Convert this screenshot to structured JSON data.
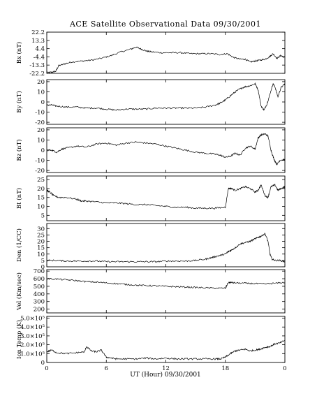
{
  "chart_data": {
    "type": "line",
    "title": "ACE Satellite Observational Data 09/30/2001",
    "xlabel": "UT (Hour) 09/30/2001",
    "xlim": [
      0,
      24
    ],
    "x_ticks": [
      "0",
      "6",
      "12",
      "18",
      "0"
    ],
    "grid": false,
    "panels": [
      {
        "ylabel": "Bx (nT)",
        "ylim": [
          -22.2,
          22.2
        ],
        "yticks": [
          "22.2",
          "13.3",
          "4.4",
          "-4.4",
          "-13.3",
          "-22.2"
        ],
        "series": {
          "x": [
            0,
            0.5,
            0.9,
            1.2,
            1.8,
            2.5,
            3.5,
            4.5,
            5.5,
            6.5,
            7.5,
            8.5,
            9,
            9.5,
            10,
            10.5,
            11.5,
            12.5,
            13.5,
            14.5,
            15.5,
            16.5,
            17.5,
            18.2,
            18.8,
            19.5,
            20,
            20.5,
            21,
            21.5,
            22,
            22.5,
            22.8,
            23.2,
            23.6,
            24
          ],
          "y": [
            -21.5,
            -21,
            -20,
            -14,
            -12,
            -10,
            -9,
            -8,
            -6,
            -3,
            1,
            4,
            6,
            4,
            2,
            1,
            0,
            0,
            0,
            -1,
            -1,
            -1,
            -2,
            -1,
            -5,
            -7,
            -7,
            -10,
            -9,
            -8,
            -7,
            -4,
            -1,
            -6,
            -3,
            -5
          ]
        }
      },
      {
        "ylabel": "By (nT)",
        "ylim": [
          -22,
          22
        ],
        "yticks": [
          "20",
          "10",
          "0",
          "-10",
          "-20"
        ],
        "series": {
          "x": [
            0,
            0.5,
            1,
            2,
            3,
            4,
            5,
            6,
            7,
            8,
            9,
            10,
            11,
            12,
            13,
            14,
            15,
            16,
            17,
            17.5,
            18,
            18.5,
            19,
            19.5,
            20,
            20.5,
            21,
            21.3,
            21.6,
            21.9,
            22.2,
            22.5,
            22.8,
            23,
            23.3,
            23.6,
            24
          ],
          "y": [
            -3,
            -3,
            -4,
            -5,
            -5,
            -6,
            -6,
            -7,
            -8,
            -7,
            -7,
            -7,
            -6,
            -6,
            -6,
            -6,
            -6,
            -5,
            -3,
            -1,
            2,
            6,
            10,
            13,
            15,
            16,
            18,
            12,
            -4,
            -8,
            -2,
            8,
            18,
            15,
            5,
            14,
            18
          ]
        }
      },
      {
        "ylabel": "Bz (nT)",
        "ylim": [
          -22,
          22
        ],
        "yticks": [
          "20",
          "10",
          "0",
          "-10",
          "-20"
        ],
        "series": {
          "x": [
            0,
            0.5,
            1,
            1.5,
            2,
            3,
            4,
            5,
            6,
            7,
            8,
            9,
            10,
            11,
            12,
            13,
            14,
            15,
            16,
            17,
            17.5,
            18,
            18.5,
            19,
            19.5,
            20,
            20.5,
            21,
            21.3,
            21.6,
            22,
            22.3,
            22.6,
            22.9,
            23.2,
            23.5,
            24
          ],
          "y": [
            0,
            0,
            -2,
            1,
            2,
            4,
            3,
            6,
            7,
            5,
            7,
            8,
            7,
            6,
            4,
            2,
            0,
            -2,
            -3,
            -4,
            -5,
            -7,
            -6,
            -3,
            -5,
            2,
            4,
            1,
            12,
            15,
            16,
            14,
            0,
            -9,
            -14,
            -10,
            -9
          ]
        }
      },
      {
        "ylabel": "Bt (nT)",
        "ylim": [
          2,
          27
        ],
        "yticks": [
          "25",
          "20",
          "15",
          "10",
          "5"
        ],
        "series": {
          "x": [
            0,
            0.3,
            0.7,
            1.2,
            2,
            3,
            3.5,
            4,
            5,
            6,
            7,
            8,
            9,
            10,
            11,
            12,
            13,
            14,
            15,
            16,
            17,
            18,
            18.3,
            18.6,
            19,
            19.5,
            20,
            20.5,
            21,
            21.3,
            21.6,
            22,
            22.3,
            22.6,
            23,
            23.3,
            23.6,
            24
          ],
          "y": [
            19,
            18,
            16,
            15,
            15,
            14,
            13,
            13,
            12.5,
            12,
            12,
            11.5,
            11,
            11,
            10.5,
            10,
            9.5,
            9.5,
            9,
            9,
            9,
            9.5,
            20,
            20,
            19,
            20,
            21,
            20,
            18,
            19,
            22,
            16,
            15,
            21,
            22,
            19,
            20,
            21
          ]
        }
      },
      {
        "ylabel": "Den (1/CC)",
        "ylim": [
          0,
          34
        ],
        "yticks": [
          "30",
          "25",
          "20",
          "15",
          "10",
          "5",
          "0"
        ],
        "series": {
          "x": [
            0,
            1,
            2,
            3,
            4,
            5,
            6,
            7,
            8,
            9,
            10,
            11,
            12,
            13,
            14,
            15,
            16,
            16.5,
            17,
            17.5,
            18,
            18.3,
            18.6,
            19,
            19.5,
            20,
            20.5,
            21,
            21.3,
            21.6,
            22,
            22.3,
            22.5,
            22.7,
            23,
            23.5,
            24
          ],
          "y": [
            5,
            5,
            4.5,
            4.5,
            4.5,
            4.5,
            4,
            4,
            4,
            4,
            4,
            4,
            4.5,
            4.5,
            4.5,
            5,
            6,
            7,
            8,
            9,
            10,
            12,
            13,
            15,
            18,
            19,
            20,
            22,
            23,
            24,
            26,
            20,
            10,
            6,
            5,
            5,
            4
          ]
        }
      },
      {
        "ylabel": "Vel (Km/sec)",
        "ylim": [
          150,
          720
        ],
        "yticks": [
          "700",
          "600",
          "500",
          "400",
          "300",
          "200"
        ],
        "series": {
          "x": [
            0,
            1,
            2,
            3,
            4,
            5,
            6,
            7,
            8,
            9,
            10,
            11,
            12,
            13,
            14,
            15,
            16,
            17,
            18,
            18.3,
            18.6,
            19,
            20,
            21,
            22,
            23,
            24
          ],
          "y": [
            600,
            595,
            585,
            575,
            560,
            555,
            545,
            535,
            525,
            515,
            510,
            505,
            500,
            495,
            490,
            485,
            480,
            475,
            475,
            550,
            550,
            545,
            540,
            535,
            530,
            540,
            550
          ]
        }
      },
      {
        "ylabel": "Ion Temp (K)",
        "ylim": [
          0,
          520000
        ],
        "yticks": [
          "5.0×10⁵",
          "4.0×10⁵",
          "3.0×10⁵",
          "2.0×10⁵",
          "1.0×10⁵",
          "0"
        ],
        "series": {
          "x": [
            0,
            0.5,
            1,
            2,
            3,
            3.8,
            4,
            4.5,
            5,
            5.5,
            6,
            6.5,
            7,
            8,
            9,
            10,
            11,
            12,
            13,
            14,
            15,
            16,
            17,
            17.5,
            18,
            18.5,
            19,
            19.5,
            20,
            20.5,
            21,
            21.5,
            22,
            22.5,
            23,
            23.5,
            24
          ],
          "y": [
            120000,
            140000,
            110000,
            100000,
            110000,
            120000,
            180000,
            130000,
            120000,
            140000,
            60000,
            50000,
            40000,
            40000,
            40000,
            50000,
            40000,
            50000,
            40000,
            40000,
            40000,
            40000,
            40000,
            40000,
            60000,
            100000,
            130000,
            140000,
            150000,
            130000,
            140000,
            150000,
            170000,
            180000,
            210000,
            220000,
            250000
          ]
        }
      }
    ]
  }
}
